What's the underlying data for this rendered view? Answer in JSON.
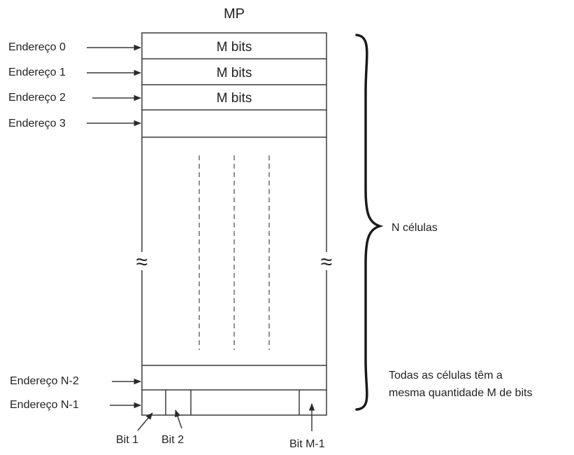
{
  "title": "MP",
  "addresses": {
    "a0": "Endereço 0",
    "a1": "Endereço 1",
    "a2": "Endereço 2",
    "a3": "Endereço 3",
    "an2": "Endereço N-2",
    "an1": "Endereço N-1"
  },
  "cells": {
    "c0": "M bits",
    "c1": "M bits",
    "c2": "M bits"
  },
  "break_symbol": "≈",
  "brace_label": "N células",
  "note": {
    "line1": "Todas as células têm a",
    "line2": "mesma quantidade M de bits"
  },
  "bits": {
    "bit1": "Bit 1",
    "bit2": "Bit 2",
    "bitm1": "Bit M-1"
  }
}
